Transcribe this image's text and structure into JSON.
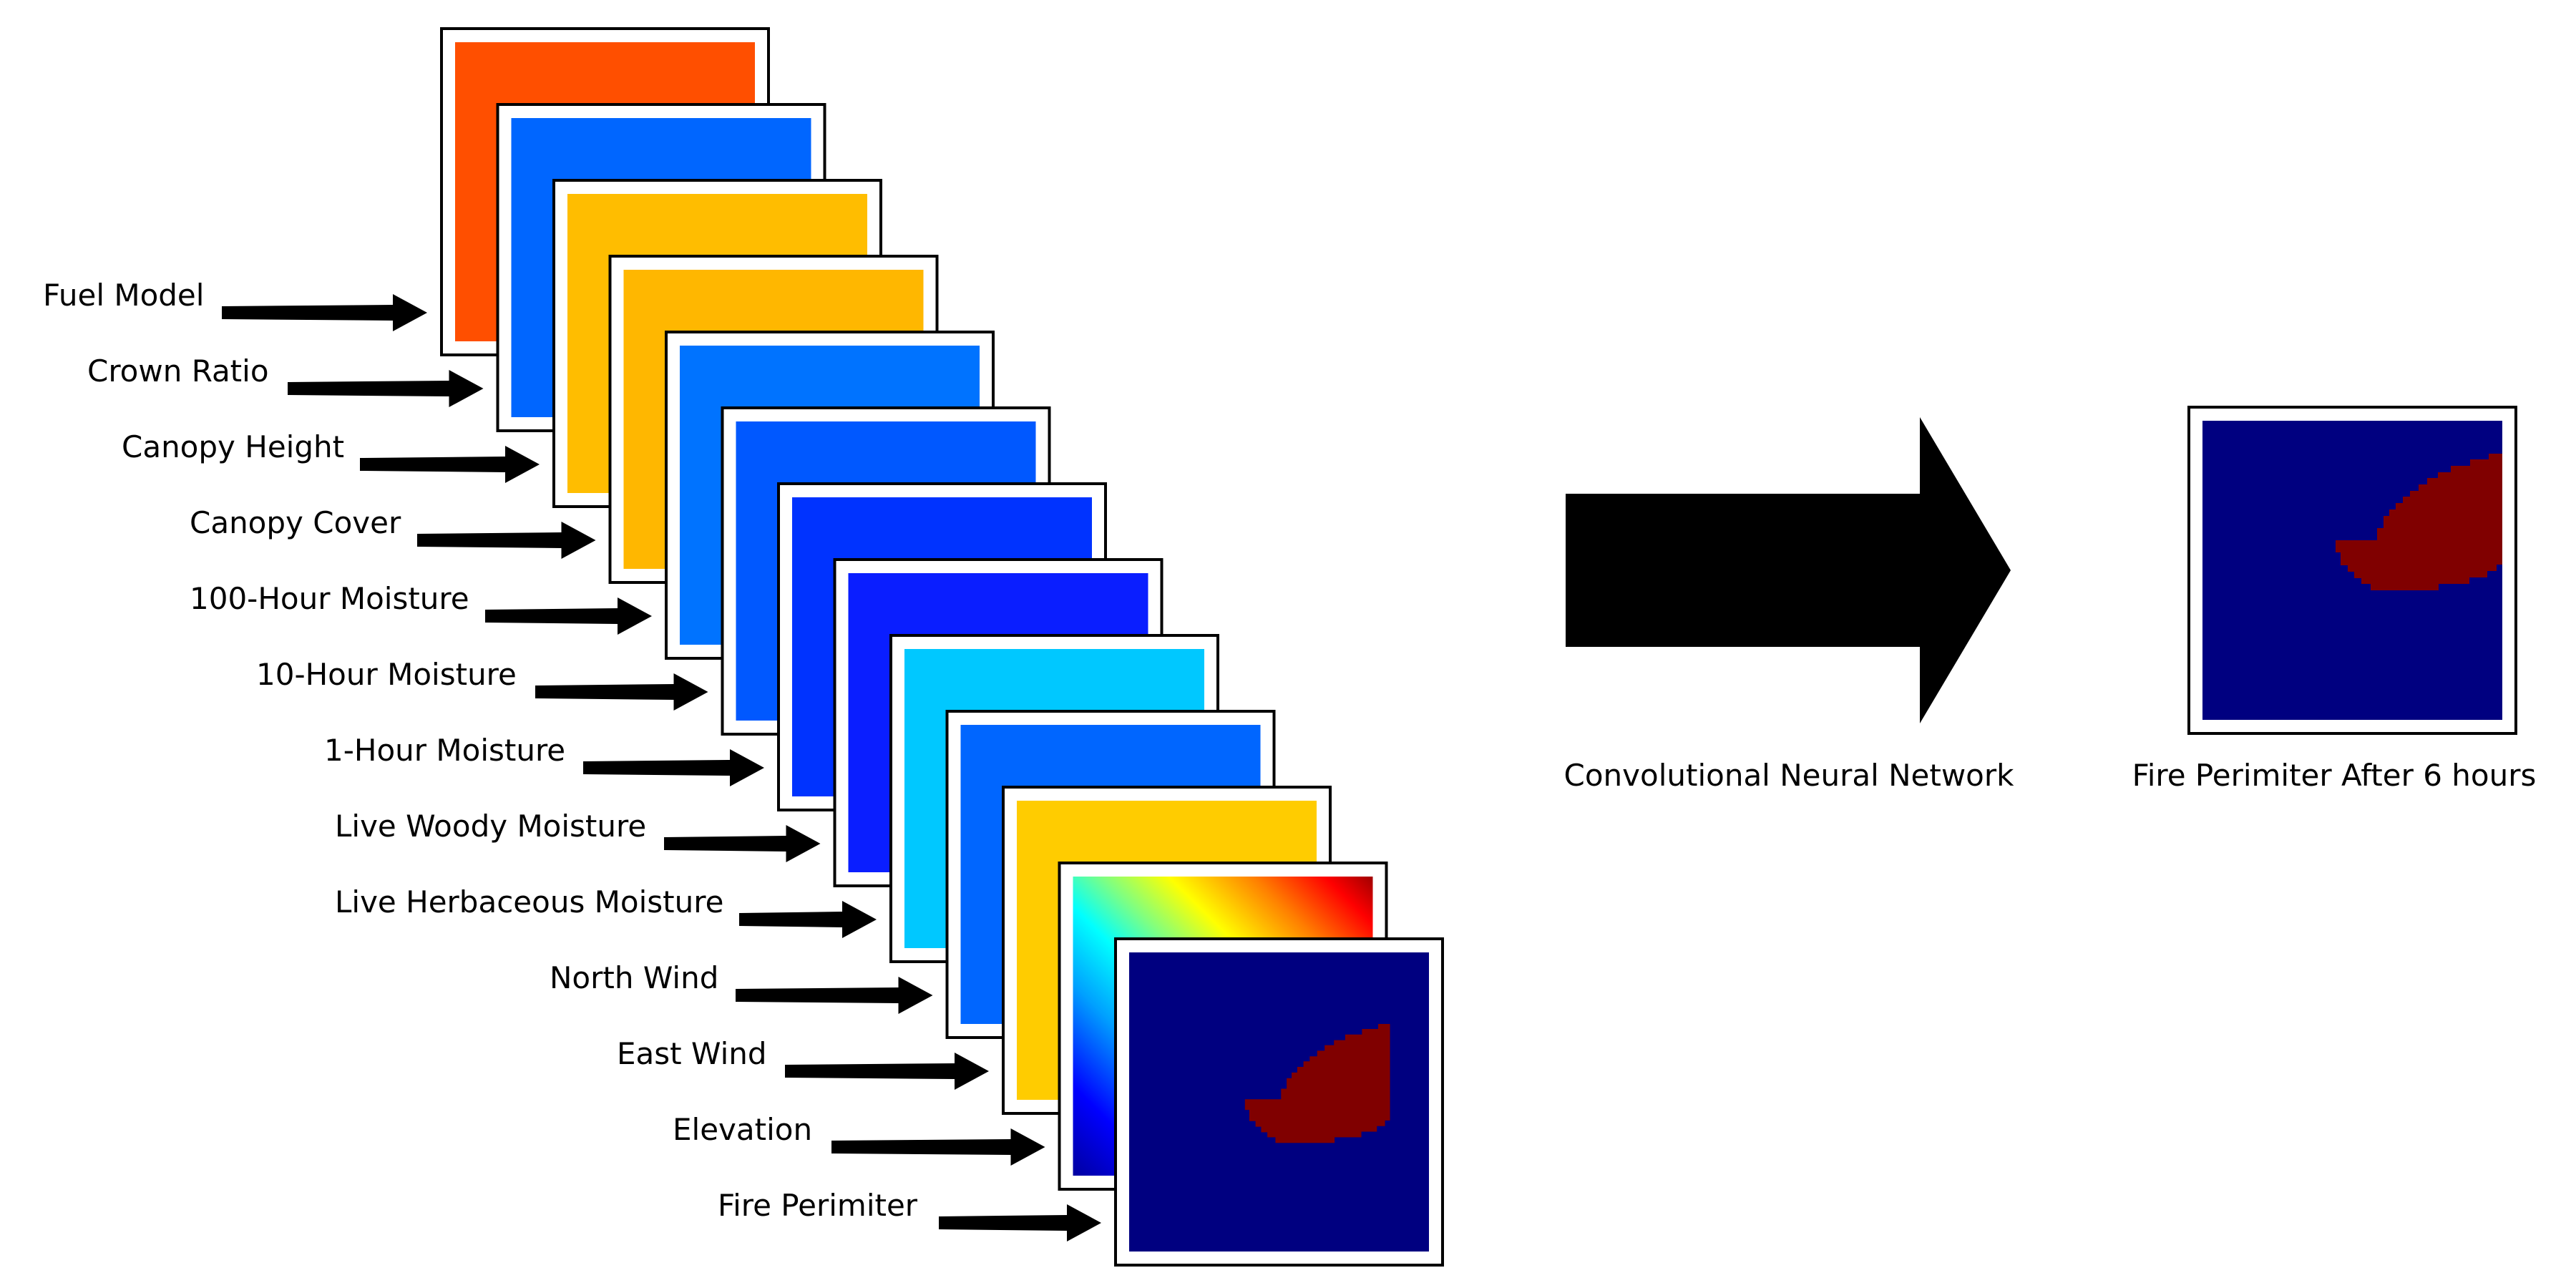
{
  "input_layers": [
    {
      "label": "Fuel Model",
      "color": "#ff4f00"
    },
    {
      "label": "Crown Ratio",
      "color": "#0066ff"
    },
    {
      "label": "Canopy Height",
      "color": "#ffbd00"
    },
    {
      "label": "Canopy Cover",
      "color": "#ffb700"
    },
    {
      "label": "100-Hour Moisture",
      "color": "#0073ff"
    },
    {
      "label": "10-Hour Moisture",
      "color": "#0058ff"
    },
    {
      "label": "1-Hour Moisture",
      "color": "#0033ff"
    },
    {
      "label": "Live Woody Moisture",
      "color": "#0a1eff"
    },
    {
      "label": "Live Herbaceous Moisture",
      "color": "#00c8ff"
    },
    {
      "label": "North Wind",
      "color": "#0066ff"
    },
    {
      "label": "East Wind",
      "color": "#ffcc00"
    },
    {
      "label": "Elevation",
      "color": "gradient"
    },
    {
      "label": "Fire Perimiter",
      "color": "fire"
    }
  ],
  "model": {
    "label": "Convolutional Neural Network",
    "icon": "arrow-right-icon"
  },
  "output": {
    "label": "Fire Perimiter After 6 hours"
  },
  "colors": {
    "frame": "#000000",
    "fire_background": "#000080",
    "fire_region": "#800000",
    "arrow": "#000000",
    "elevation_gradient": [
      "#0000a0",
      "#0000ff",
      "#00a0ff",
      "#00ffff",
      "#80ff80",
      "#ffff00",
      "#ff8000",
      "#ff0000",
      "#a00000"
    ]
  }
}
